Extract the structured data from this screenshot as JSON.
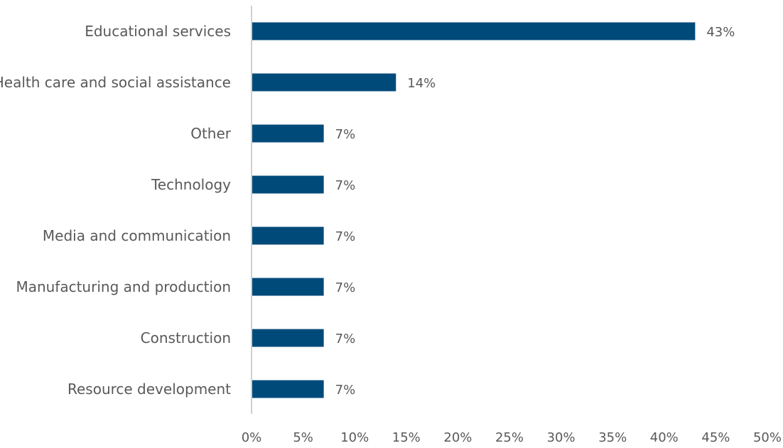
{
  "chart_data": {
    "type": "bar",
    "orientation": "horizontal",
    "title": "",
    "xlabel": "",
    "ylabel": "",
    "categories": [
      "Educational services",
      "Health care and social assistance",
      "Other",
      "Technology",
      "Media and communication",
      "Manufacturing and production",
      "Construction",
      "Resource development"
    ],
    "values": [
      43,
      14,
      7,
      7,
      7,
      7,
      7,
      7
    ],
    "data_labels": [
      "43%",
      "14%",
      "7%",
      "7%",
      "7%",
      "7%",
      "7%",
      "7%"
    ],
    "xlim": [
      0,
      50
    ],
    "x_ticks": [
      0,
      5,
      10,
      15,
      20,
      25,
      30,
      35,
      40,
      45,
      50
    ],
    "x_tick_labels": [
      "0%",
      "5%",
      "10%",
      "15%",
      "20%",
      "25%",
      "30%",
      "35%",
      "40%",
      "45%",
      "50%"
    ],
    "grid": false,
    "legend": "none",
    "colors": {
      "bar": "#004a7a",
      "text": "#595959",
      "axis": "#d0d0d0"
    }
  }
}
